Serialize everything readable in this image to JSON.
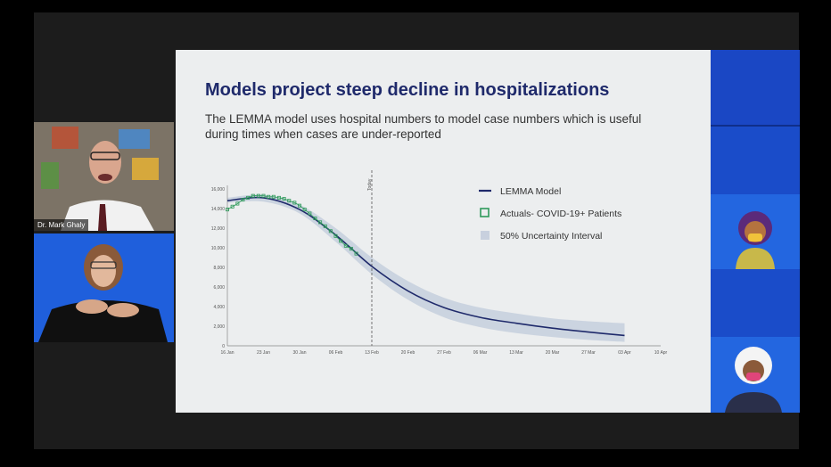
{
  "meeting": {
    "speaker_name": "Dr. Mark Ghaly"
  },
  "slide": {
    "title": "Models project steep decline in hospitalizations",
    "subtitle": "The LEMMA model uses hospital numbers to model case numbers which is useful during times when cases are under-reported"
  },
  "chart_data": {
    "type": "line",
    "title": "",
    "xlabel": "",
    "ylabel": "",
    "ylim": [
      0,
      16000
    ],
    "y_ticks": [
      "0",
      "2,000",
      "4,000",
      "6,000",
      "8,000",
      "10,000",
      "12,000",
      "14,000",
      "16,000"
    ],
    "x_ticks": [
      "16 Jan",
      "23 Jan",
      "30 Jan",
      "06 Feb",
      "13 Feb",
      "20 Feb",
      "27 Feb",
      "06 Mar",
      "13 Mar",
      "20 Mar",
      "27 Mar",
      "03 Apr",
      "10 Apr"
    ],
    "today_label": "Today",
    "today_index": 4,
    "legend": [
      "LEMMA Model",
      "Actuals- COVID-19+ Patients",
      "50% Uncertainty Interval"
    ],
    "colors": {
      "model": "#1f2a6b",
      "actuals": "#2e9a5a",
      "band": "#c8d0de"
    },
    "series": [
      {
        "name": "LEMMA Model",
        "x": [
          0,
          1,
          2,
          3,
          4,
          5,
          6,
          7,
          8,
          9,
          10,
          11,
          12
        ],
        "values": [
          14800,
          15100,
          13900,
          11300,
          8100,
          5600,
          3900,
          2900,
          2300,
          1800,
          1400,
          1050,
          null
        ]
      },
      {
        "name": "50% Uncertainty Interval",
        "x": [
          0,
          1,
          2,
          3,
          4,
          5,
          6,
          7,
          8,
          9,
          10,
          11
        ],
        "lower": [
          14600,
          14700,
          13500,
          10600,
          7300,
          4700,
          2900,
          1900,
          1300,
          900,
          600,
          400
        ],
        "upper": [
          15100,
          15400,
          14400,
          12000,
          9000,
          6600,
          4900,
          3900,
          3300,
          2800,
          2500,
          2300
        ]
      },
      {
        "name": "Actuals- COVID-19+ Patients",
        "x": [
          0,
          0.14,
          0.28,
          0.43,
          0.57,
          0.71,
          0.86,
          1,
          1.14,
          1.28,
          1.43,
          1.57,
          1.71,
          1.86,
          2,
          2.14,
          2.28,
          2.43,
          2.57,
          2.71,
          2.86,
          3,
          3.14,
          3.28,
          3.43,
          3.57
        ],
        "values": [
          13900,
          14200,
          14500,
          14900,
          15100,
          15300,
          15300,
          15300,
          15200,
          15200,
          15100,
          15000,
          14800,
          14600,
          14300,
          13900,
          13500,
          13000,
          12600,
          12200,
          11700,
          11200,
          10700,
          10200,
          9900,
          9400
        ]
      }
    ]
  }
}
